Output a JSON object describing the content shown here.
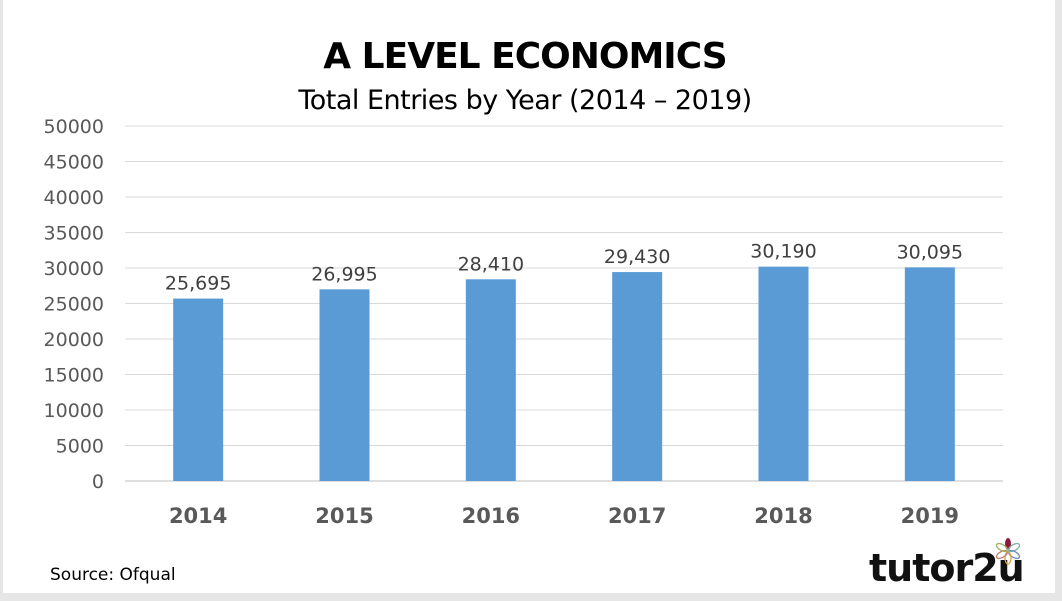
{
  "chart_data": {
    "type": "bar",
    "title": "A LEVEL ECONOMICS",
    "subtitle": "Total Entries by Year (2014 – 2019)",
    "categories": [
      "2014",
      "2015",
      "2016",
      "2017",
      "2018",
      "2019"
    ],
    "values": [
      25695,
      26995,
      28410,
      29430,
      30190,
      30095
    ],
    "data_labels": [
      "25,695",
      "26,995",
      "28,410",
      "29,430",
      "30,190",
      "30,095"
    ],
    "ylim": [
      0,
      50000
    ],
    "yticks": [
      "0",
      "5000",
      "10000",
      "15000",
      "20000",
      "25000",
      "30000",
      "35000",
      "40000",
      "45000",
      "50000"
    ],
    "grid": true,
    "legend": "none",
    "bar_color": "#5b9bd5"
  },
  "footer": {
    "source": "Source: Ofqual",
    "logo": "tutor2u"
  }
}
